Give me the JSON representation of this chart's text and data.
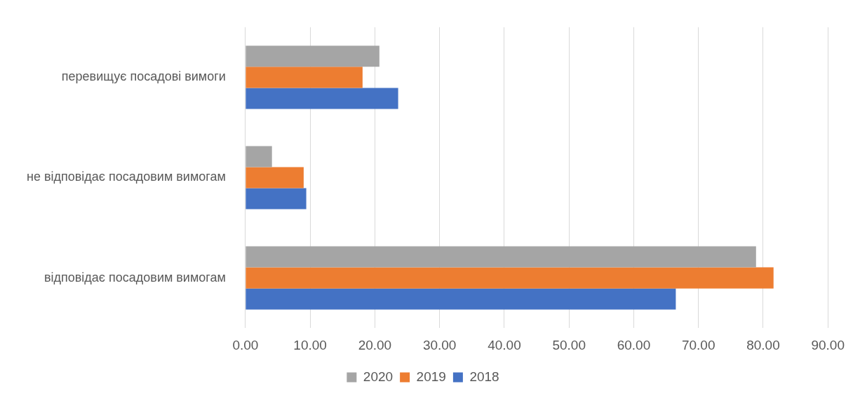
{
  "chart_data": {
    "type": "bar",
    "orientation": "horizontal",
    "categories": [
      "перевищує посадові вимоги",
      "не відповідає посадовим вимогам",
      "відповідає посадовим вимогам"
    ],
    "series": [
      {
        "name": "2020",
        "color": "#a5a5a5",
        "values": [
          20.7,
          4.1,
          78.9
        ]
      },
      {
        "name": "2019",
        "color": "#ed7d31",
        "values": [
          18.1,
          9.0,
          81.6
        ]
      },
      {
        "name": "2018",
        "color": "#4472c4",
        "values": [
          23.6,
          9.4,
          66.5
        ]
      }
    ],
    "xlim": [
      0,
      90
    ],
    "xticks": [
      {
        "value": 0,
        "label": "0.00"
      },
      {
        "value": 10,
        "label": "10.00"
      },
      {
        "value": 20,
        "label": "20.00"
      },
      {
        "value": 30,
        "label": "30.00"
      },
      {
        "value": 40,
        "label": "40.00"
      },
      {
        "value": 50,
        "label": "50.00"
      },
      {
        "value": 60,
        "label": "60.00"
      },
      {
        "value": 70,
        "label": "70.00"
      },
      {
        "value": 80,
        "label": "80.00"
      },
      {
        "value": 90,
        "label": "90.00"
      }
    ],
    "grid": "x",
    "legend": "bottom"
  }
}
